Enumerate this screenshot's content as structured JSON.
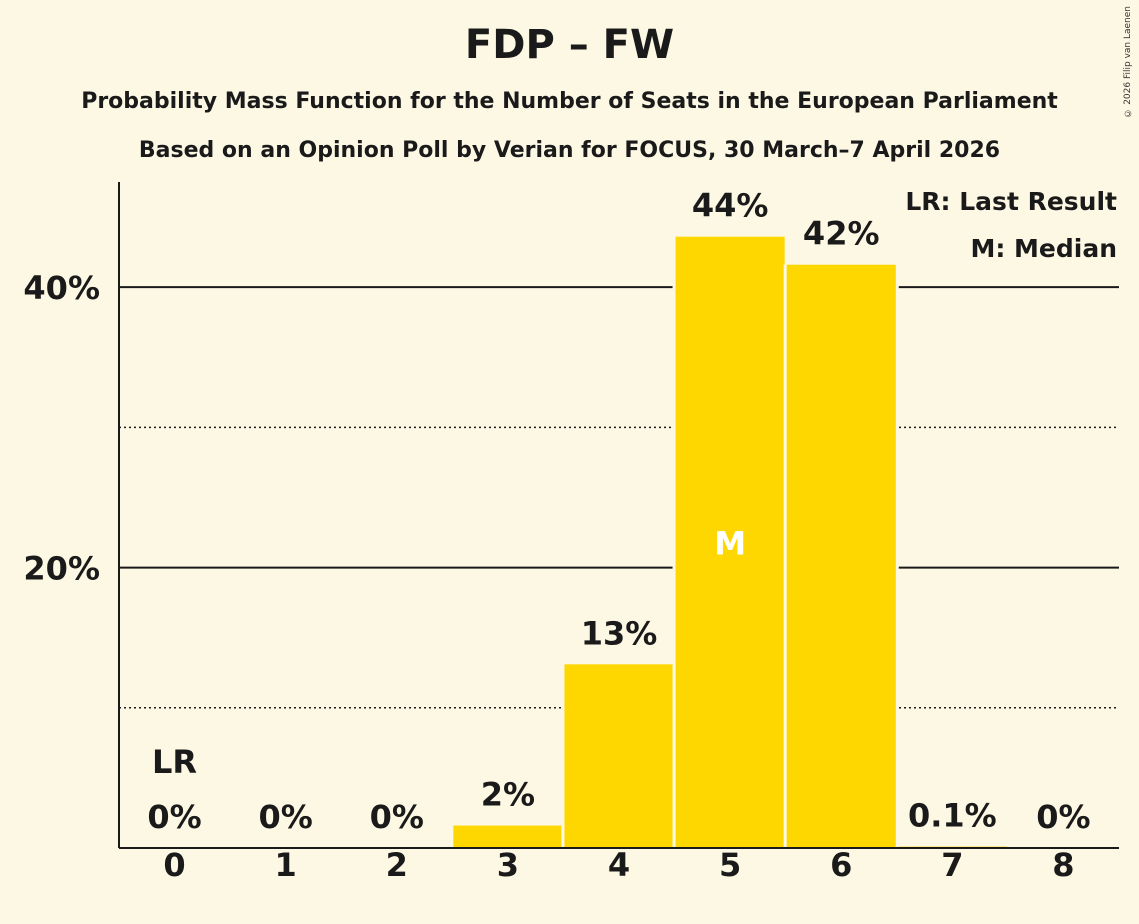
{
  "chart_data": {
    "type": "bar",
    "title": "FDP – FW",
    "subtitle": "Probability Mass Function for the Number of Seats in the European Parliament",
    "subtitle2": "Based on an Opinion Poll by Verian for FOCUS, 30 March–7 April 2026",
    "copyright": "© 2026 Filip van Laenen",
    "categories": [
      "0",
      "1",
      "2",
      "3",
      "4",
      "5",
      "6",
      "7",
      "8"
    ],
    "values": [
      0,
      0,
      0,
      1.6,
      13.1,
      43.6,
      41.6,
      0.1,
      0
    ],
    "value_labels": [
      "0%",
      "0%",
      "0%",
      "2%",
      "13%",
      "44%",
      "42%",
      "0.1%",
      "0%"
    ],
    "y_ticks": [
      {
        "value": 20,
        "label": "20%"
      },
      {
        "value": 40,
        "label": "40%"
      }
    ],
    "minor_grid": [
      10,
      30
    ],
    "ylim": [
      0,
      47.5
    ],
    "last_result": {
      "index": 0,
      "label": "LR"
    },
    "median": {
      "index": 5,
      "label": "M"
    },
    "legend": [
      "LR: Last Result",
      "M: Median"
    ],
    "colors": {
      "bar": "#ffd700",
      "background": "#fdf8e4",
      "text": "#1a1a1a",
      "median_text": "#ffffff"
    }
  }
}
